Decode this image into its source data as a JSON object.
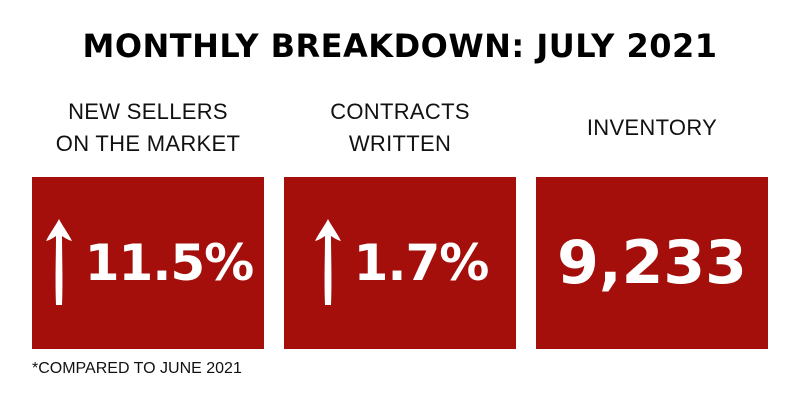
{
  "title": "MONTHLY BREAKDOWN: JULY 2021",
  "colors": {
    "card_background": "#a50f0b",
    "card_text": "#ffffff",
    "text": "#000000"
  },
  "stats": [
    {
      "label": "NEW SELLERS\nON THE MARKET",
      "value": "11.5%",
      "trend_icon": "arrow-up-icon"
    },
    {
      "label": "CONTRACTS\nWRITTEN",
      "value": "1.7%",
      "trend_icon": "arrow-up-icon"
    },
    {
      "label": "INVENTORY",
      "value": "9,233"
    }
  ],
  "footnote": "*COMPARED TO JUNE 2021"
}
